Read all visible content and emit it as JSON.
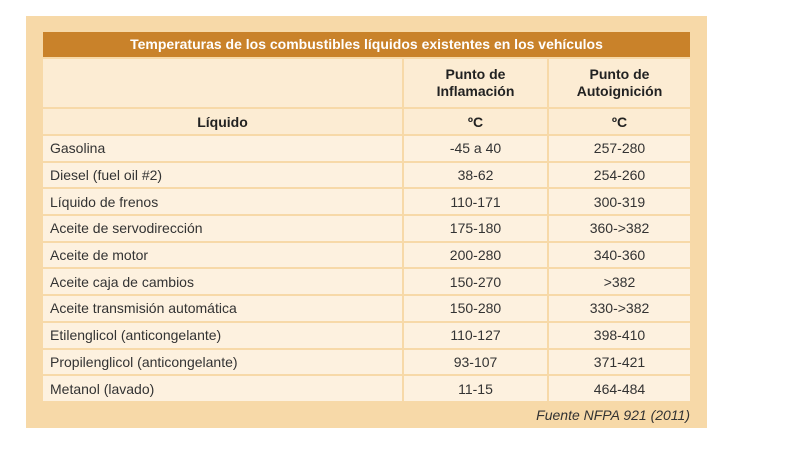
{
  "table": {
    "title": "Temperaturas de los combustibles líquidos existentes en los  vehículos",
    "header": {
      "col2_line1": "Punto de",
      "col2_line2": "Inflamación",
      "col3_line1": "Punto de",
      "col3_line2": "Autoignición",
      "col1_label": "Líquido",
      "col2_unit": "ºC",
      "col3_unit": "ºC"
    },
    "rows": [
      {
        "liquid": "Gasolina",
        "flash": "-45 a 40",
        "autoign": "257-280"
      },
      {
        "liquid": "Diesel (fuel oil #2)",
        "flash": "38-62",
        "autoign": "254-260"
      },
      {
        "liquid": "Líquido de frenos",
        "flash": "110-171",
        "autoign": "300-319"
      },
      {
        "liquid": "Aceite de servodirección",
        "flash": "175-180",
        "autoign": "360->382"
      },
      {
        "liquid": "Aceite de motor",
        "flash": "200-280",
        "autoign": "340-360"
      },
      {
        "liquid": "Aceite caja de cambios",
        "flash": "150-270",
        "autoign": ">382"
      },
      {
        "liquid": "Aceite transmisión automática",
        "flash": "150-280",
        "autoign": "330->382"
      },
      {
        "liquid": "Etilenglicol (anticongelante)",
        "flash": "110-127",
        "autoign": "398-410"
      },
      {
        "liquid": "Propilenglicol (anticongelante)",
        "flash": "93-107",
        "autoign": "371-421"
      },
      {
        "liquid": "Metanol (lavado)",
        "flash": "11-15",
        "autoign": "464-484"
      }
    ],
    "source": "Fuente NFPA 921 (2011)"
  },
  "colors": {
    "panel": "#f7d9a8",
    "title_bar": "#c9822a",
    "header_bg": "#fcecd3",
    "row_bg": "#fdf1df"
  }
}
